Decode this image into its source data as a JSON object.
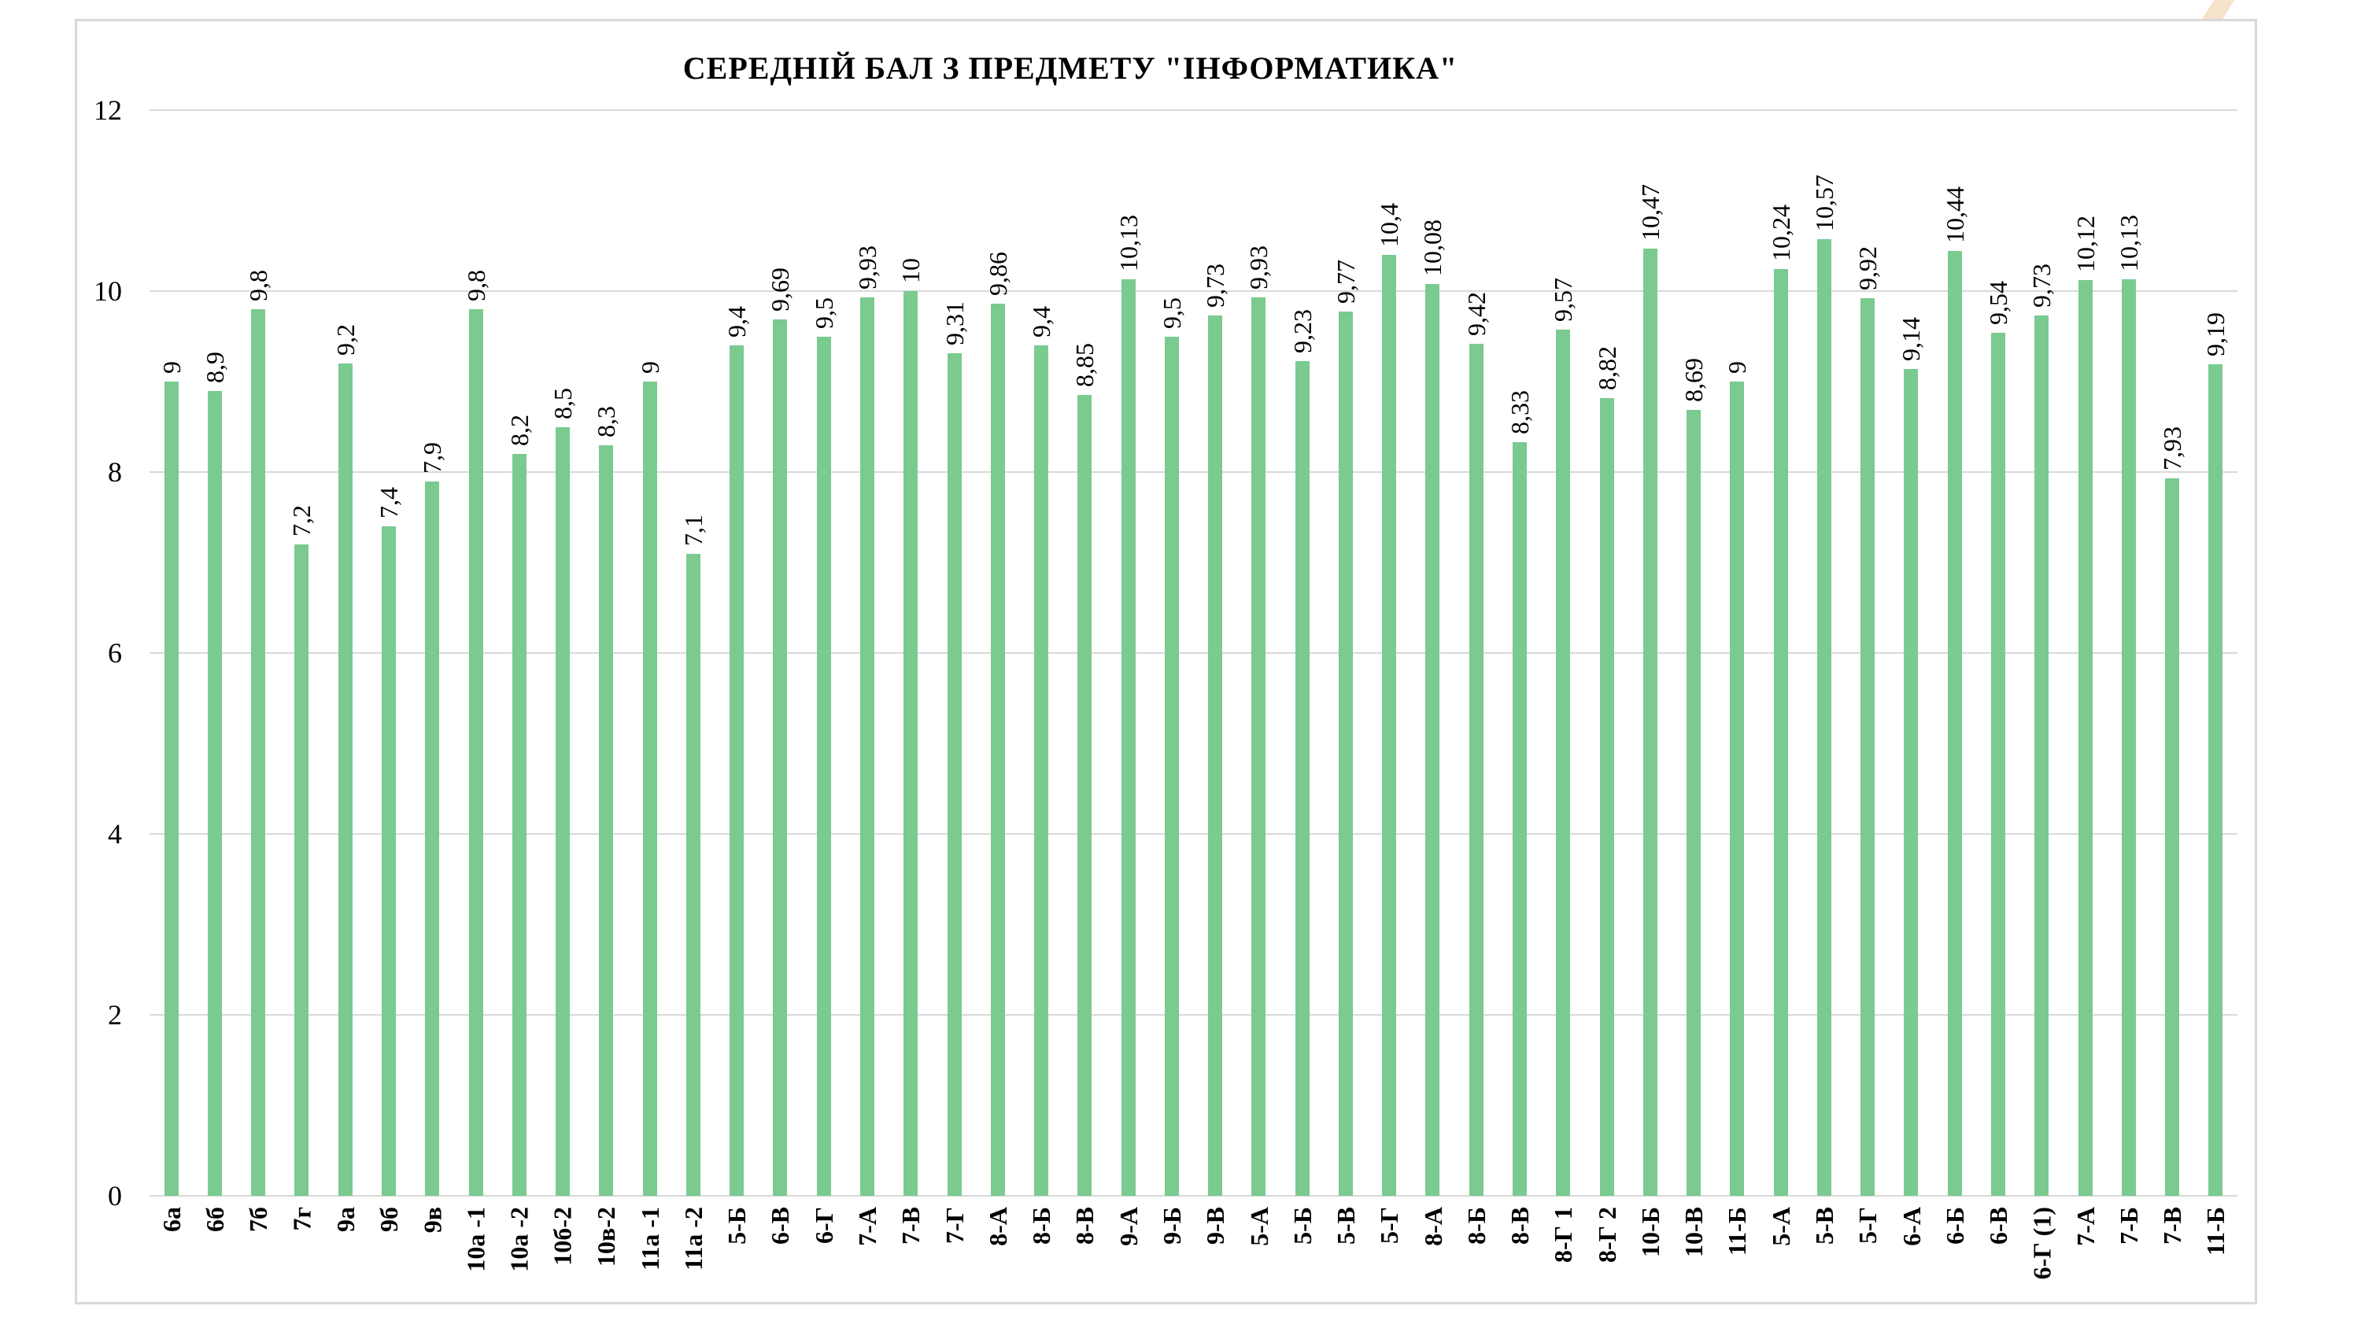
{
  "title": "СЕРЕДНІЙ БАЛ З ПРЕДМЕТУ \"ІНФОРМАТИКА\"",
  "colors": {
    "bar": "#7bca90",
    "grid": "#d9d9d9",
    "frame": "#d9d9d9",
    "text": "#000000",
    "corner_stripe": "#f6e2cb",
    "background": "#ffffff"
  },
  "y_axis": {
    "min": 0,
    "max": 12,
    "step": 2,
    "tick_labels": [
      "0",
      "2",
      "4",
      "6",
      "8",
      "10",
      "12"
    ]
  },
  "chart_data": {
    "type": "bar",
    "title": "СЕРЕДНІЙ БАЛ З ПРЕДМЕТУ \"ІНФОРМАТИКА\"",
    "xlabel": "",
    "ylabel": "",
    "ylim": [
      0,
      12
    ],
    "grid": true,
    "legend": "none",
    "decimal_separator": ",",
    "categories": [
      "6а",
      "6б",
      "7б",
      "7г",
      "9а",
      "9б",
      "9в",
      "10а -1",
      "10а -2",
      "10б-2",
      "10в-2",
      "11а -1",
      "11а -2",
      "5-Б",
      "6-В",
      "6-Г",
      "7-А",
      "7-В",
      "7-Г",
      "8-А",
      "8-Б",
      "8-В",
      "9-А",
      "9-Б",
      "9-В",
      "5-А",
      "5-Б",
      "5-В",
      "5-Г",
      "8-А",
      "8-Б",
      "8-В",
      "8-Г 1",
      "8-Г 2",
      "10-Б",
      "10-В",
      "11-Б",
      "5-А",
      "5-В",
      "5-Г",
      "6-А",
      "6-Б",
      "6-В",
      "6-Г (1)",
      "7-А",
      "7-Б",
      "7-В",
      "11-Б"
    ],
    "values": [
      9,
      8.9,
      9.8,
      7.2,
      9.2,
      7.4,
      7.9,
      9.8,
      8.2,
      8.5,
      8.3,
      9,
      7.1,
      9.4,
      9.69,
      9.5,
      9.93,
      10,
      9.31,
      9.86,
      9.4,
      8.85,
      10.13,
      9.5,
      9.73,
      9.93,
      9.23,
      9.77,
      10.4,
      10.08,
      9.42,
      8.33,
      9.57,
      8.82,
      10.47,
      8.69,
      9,
      10.24,
      10.57,
      9.92,
      9.14,
      10.44,
      9.54,
      9.73,
      10.12,
      10.13,
      7.93,
      9.19
    ],
    "value_labels": [
      "9",
      "8,9",
      "9,8",
      "7,2",
      "9,2",
      "7,4",
      "7,9",
      "9,8",
      "8,2",
      "8,5",
      "8,3",
      "9",
      "7,1",
      "9,4",
      "9,69",
      "9,5",
      "9,93",
      "10",
      "9,31",
      "9,86",
      "9,4",
      "8,85",
      "10,13",
      "9,5",
      "9,73",
      "9,93",
      "9,23",
      "9,77",
      "10,4",
      "10,08",
      "9,42",
      "8,33",
      "9,57",
      "8,82",
      "10,47",
      "8,69",
      "9",
      "10,24",
      "10,57",
      "9,92",
      "9,14",
      "10,44",
      "9,54",
      "9,73",
      "10,12",
      "10,13",
      "7,93",
      "9,19"
    ]
  }
}
